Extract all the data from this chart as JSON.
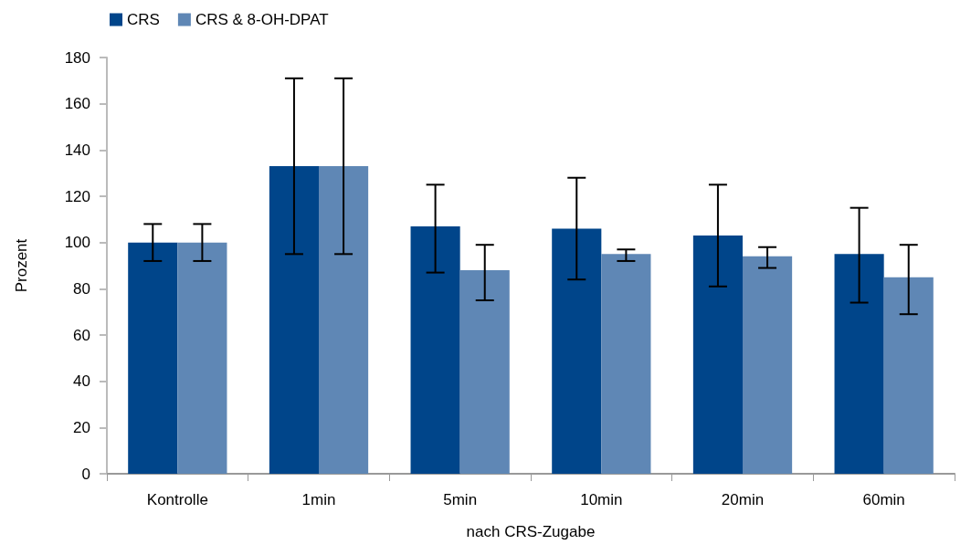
{
  "chart_data": {
    "type": "bar",
    "xlabel": "nach CRS-Zugabe",
    "ylabel": "Prozent",
    "categories": [
      "Kontrolle",
      "1min",
      "5min",
      "10min",
      "20min",
      "60min"
    ],
    "series": [
      {
        "name": "CRS",
        "color": "#00458a",
        "values": [
          100,
          133,
          107,
          106,
          103,
          95
        ],
        "errors": [
          [
            92,
            108
          ],
          [
            95,
            171
          ],
          [
            87,
            125
          ],
          [
            84,
            128
          ],
          [
            81,
            125
          ],
          [
            74,
            115
          ]
        ]
      },
      {
        "name": "CRS & 8-OH-DPAT",
        "color": "#5f87b5",
        "values": [
          100,
          133,
          88,
          95,
          94,
          85
        ],
        "errors": [
          [
            92,
            108
          ],
          [
            95,
            171
          ],
          [
            75,
            99
          ],
          [
            92,
            97
          ],
          [
            89,
            98
          ],
          [
            69,
            99
          ]
        ]
      }
    ],
    "ylim": [
      0,
      180
    ],
    "yticks": [
      0,
      20,
      40,
      60,
      80,
      100,
      120,
      140,
      160,
      180
    ],
    "grid": false,
    "legend": "top left"
  }
}
